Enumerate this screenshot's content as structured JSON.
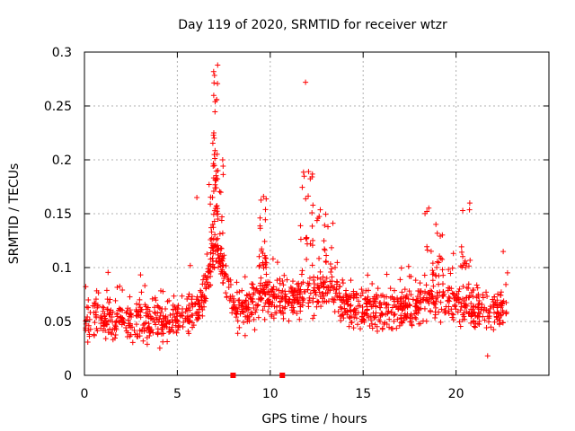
{
  "chart_data": {
    "type": "scatter",
    "title": "Day 119 of 2020, SRMTID for receiver wtzr",
    "xlabel": "GPS time / hours",
    "ylabel": "SRMTID / TECUs",
    "xlim": [
      0,
      25
    ],
    "ylim": [
      0,
      0.3
    ],
    "xticks": [
      0,
      5,
      10,
      15,
      20
    ],
    "xtick_labels": [
      "0",
      "5",
      "10",
      "15",
      "20"
    ],
    "yticks": [
      0,
      0.05,
      0.1,
      0.15,
      0.2,
      0.25,
      0.3
    ],
    "ytick_labels": [
      "0",
      "0.05",
      "0.1",
      "0.15",
      "0.2",
      "0.25",
      "0.3"
    ],
    "grid": true,
    "marker": "+",
    "color": "#ff0000",
    "series": [
      {
        "name": "SRMTID",
        "profile": {
          "x_range": [
            0,
            22.8
          ],
          "baseline": [
            [
              0,
              0.055
            ],
            [
              2,
              0.052
            ],
            [
              3,
              0.05
            ],
            [
              4,
              0.048
            ],
            [
              5,
              0.05
            ],
            [
              6,
              0.06
            ],
            [
              6.5,
              0.08
            ],
            [
              7,
              0.12
            ],
            [
              7.6,
              0.09
            ],
            [
              8,
              0.06
            ],
            [
              9,
              0.062
            ],
            [
              9.6,
              0.075
            ],
            [
              10,
              0.07
            ],
            [
              11,
              0.07
            ],
            [
              12,
              0.075
            ],
            [
              13,
              0.08
            ],
            [
              14,
              0.065
            ],
            [
              15,
              0.06
            ],
            [
              16,
              0.06
            ],
            [
              18,
              0.065
            ],
            [
              19,
              0.07
            ],
            [
              20,
              0.068
            ],
            [
              21,
              0.062
            ],
            [
              22.8,
              0.06
            ]
          ],
          "spread": 0.02,
          "count": 1400,
          "bursts": [
            {
              "x": [
                6.9,
                7.2
              ],
              "y": [
                0.14,
                0.29
              ],
              "count": 40
            },
            {
              "x": [
                6.7,
                7.5
              ],
              "y": [
                0.1,
                0.2
              ],
              "count": 30
            },
            {
              "x": [
                9.4,
                9.8
              ],
              "y": [
                0.1,
                0.17
              ],
              "count": 25
            },
            {
              "x": [
                11.6,
                12.3
              ],
              "y": [
                0.12,
                0.19
              ],
              "count": 22
            },
            {
              "x": [
                12.5,
                13.5
              ],
              "y": [
                0.1,
                0.16
              ],
              "count": 18
            },
            {
              "x": [
                18.3,
                19.3
              ],
              "y": [
                0.09,
                0.16
              ],
              "count": 22
            },
            {
              "x": [
                20.2,
                20.8
              ],
              "y": [
                0.1,
                0.16
              ],
              "count": 14
            }
          ],
          "outliers": [
            [
              11.9,
              0.272
            ],
            [
              21.7,
              0.018
            ],
            [
              6.05,
              0.165
            ]
          ]
        }
      },
      {
        "name": "gap markers",
        "x": [
          8.0,
          10.65
        ],
        "y": [
          0,
          0
        ]
      }
    ]
  }
}
